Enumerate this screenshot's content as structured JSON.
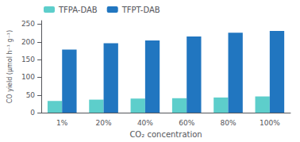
{
  "chart_data": {
    "type": "bar",
    "xlabel": "CO₂ concentration",
    "ylabel": "CO yield (μmol h⁻¹ g⁻¹)",
    "categories": [
      "1%",
      "20%",
      "40%",
      "60%",
      "80%",
      "100%"
    ],
    "series": [
      {
        "name": "TFPA-DAB",
        "color": "#5DCECB",
        "values": [
          33,
          37,
          40,
          41,
          43,
          46
        ]
      },
      {
        "name": "TFPT-DAB",
        "color": "#2176C0",
        "values": [
          178,
          196,
          204,
          215,
          226,
          231
        ]
      }
    ],
    "ylim": [
      0,
      260
    ],
    "yticks": [
      0,
      50,
      100,
      150,
      200,
      250
    ],
    "grid": false,
    "legend": "upper left"
  }
}
